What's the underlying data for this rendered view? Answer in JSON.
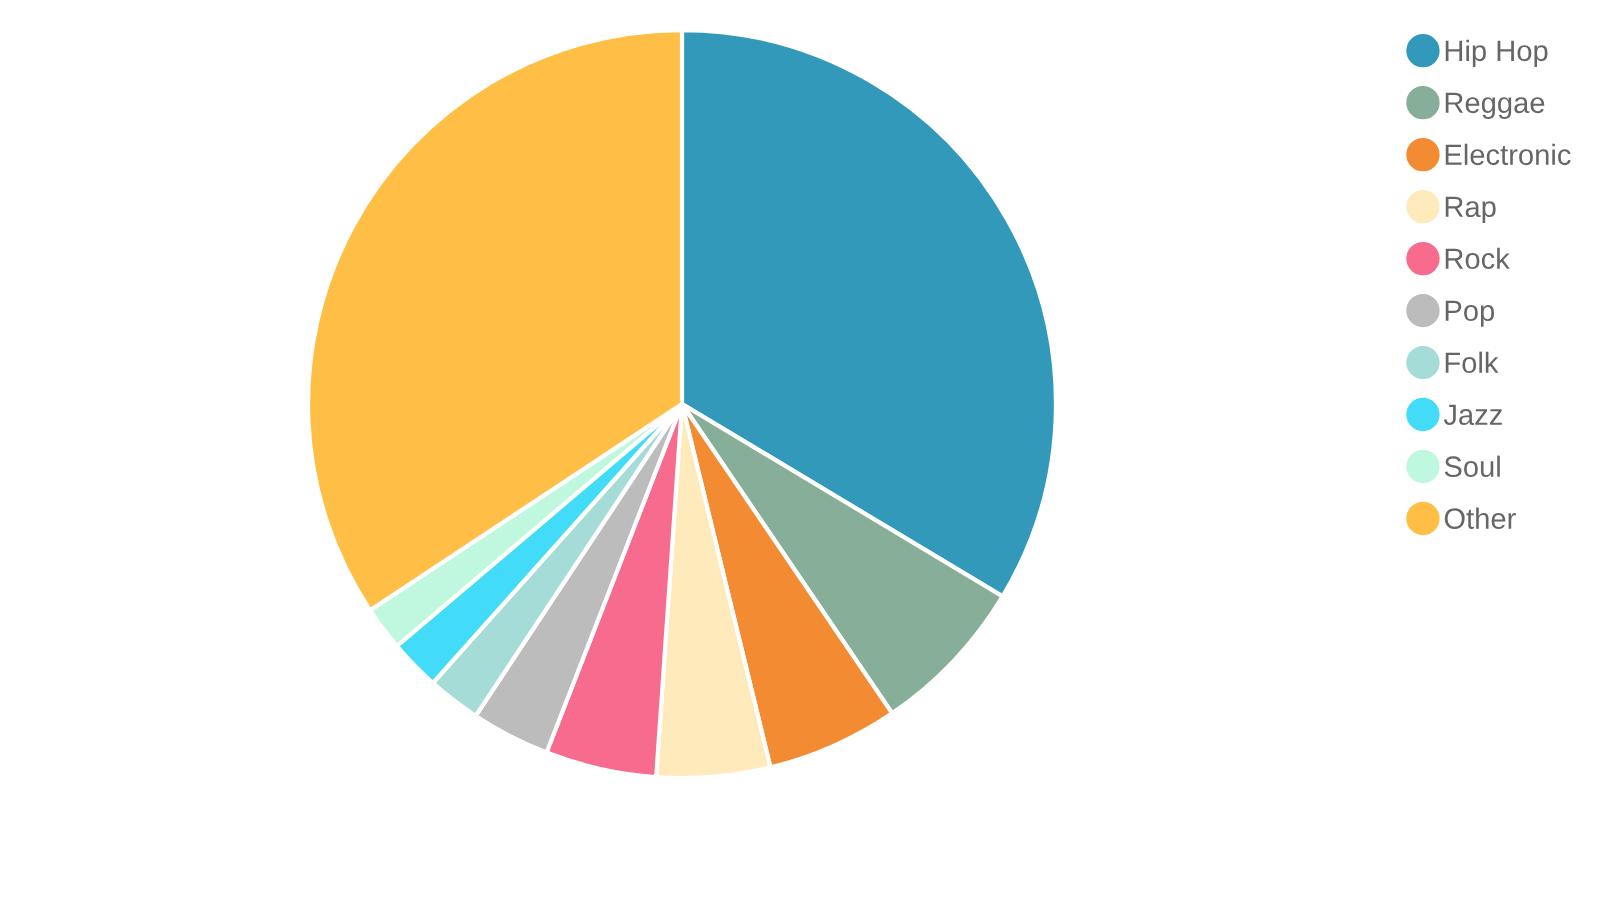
{
  "chart_data": {
    "type": "pie",
    "categories": [
      "Hip Hop",
      "Reggae",
      "Electronic",
      "Rap",
      "Rock",
      "Pop",
      "Folk",
      "Jazz",
      "Soul",
      "Other"
    ],
    "values": [
      33.6,
      6.9,
      5.7,
      4.9,
      4.8,
      3.4,
      2.3,
      2.2,
      1.9,
      34.3
    ],
    "colors": [
      "#3399bb",
      "#87ae98",
      "#f38b33",
      "#ffeabc",
      "#f76b8f",
      "#bcbcbc",
      "#a6dcd8",
      "#43dcf8",
      "#bff8de",
      "#ffbf47"
    ],
    "legend": "right"
  }
}
